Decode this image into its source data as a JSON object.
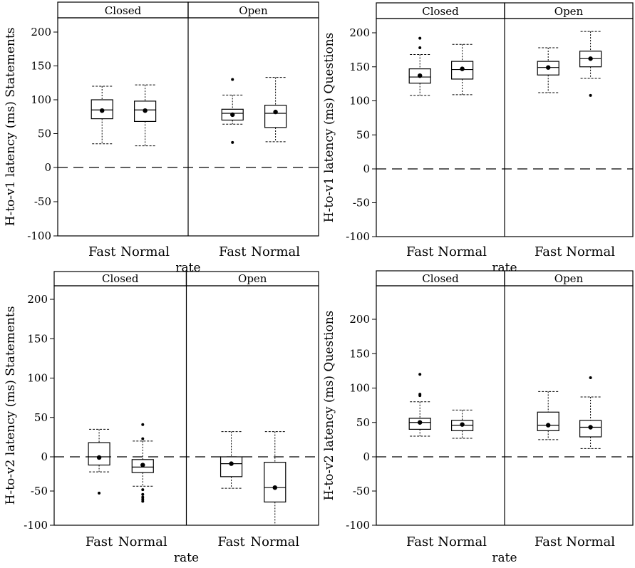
{
  "chart_data": [
    {
      "type": "boxplot",
      "ylabel": "H-to-v1 latency (ms) Statements",
      "xlabel": "rate",
      "ylim": [
        -100,
        220
      ],
      "yticks": [
        200,
        150,
        100,
        50,
        0,
        -50,
        -100
      ],
      "reference_line": 0,
      "panels": [
        {
          "label": "Closed",
          "categories": [
            "Fast",
            "Normal"
          ],
          "boxes": [
            {
              "min": 35,
              "q1": 72,
              "median": 85,
              "q3": 100,
              "max": 120,
              "mean": 84,
              "outliers": []
            },
            {
              "min": 32,
              "q1": 68,
              "median": 85,
              "q3": 98,
              "max": 122,
              "mean": 84,
              "outliers": []
            }
          ]
        },
        {
          "label": "Open",
          "categories": [
            "Fast",
            "Normal"
          ],
          "boxes": [
            {
              "min": 64,
              "q1": 70,
              "median": 80,
              "q3": 86,
              "max": 107,
              "mean": 78,
              "outliers": [
                130,
                37
              ]
            },
            {
              "min": 38,
              "q1": 59,
              "median": 80,
              "q3": 92,
              "max": 133,
              "mean": 82,
              "outliers": []
            }
          ]
        }
      ]
    },
    {
      "type": "boxplot",
      "ylabel": "H-to-v1 latency (ms) Questions",
      "xlabel": "rate",
      "ylim": [
        -100,
        220
      ],
      "yticks": [
        200,
        150,
        100,
        50,
        0,
        -50,
        -100
      ],
      "reference_line": 0,
      "panels": [
        {
          "label": "Closed",
          "categories": [
            "Fast",
            "Normal"
          ],
          "boxes": [
            {
              "min": 108,
              "q1": 126,
              "median": 135,
              "q3": 147,
              "max": 168,
              "mean": 137,
              "outliers": [
                192,
                178
              ]
            },
            {
              "min": 109,
              "q1": 132,
              "median": 146,
              "q3": 158,
              "max": 183,
              "mean": 147,
              "outliers": []
            }
          ]
        },
        {
          "label": "Open",
          "categories": [
            "Fast",
            "Normal"
          ],
          "boxes": [
            {
              "min": 112,
              "q1": 138,
              "median": 149,
              "q3": 158,
              "max": 178,
              "mean": 149,
              "outliers": []
            },
            {
              "min": 133,
              "q1": 150,
              "median": 162,
              "q3": 173,
              "max": 202,
              "mean": 162,
              "outliers": [
                108
              ]
            }
          ]
        }
      ]
    },
    {
      "type": "boxplot",
      "ylabel": "H-to-v2 latency (ms) Statements",
      "xlabel": "rate",
      "ylim": [
        -100,
        220
      ],
      "yticks": [
        200,
        150,
        100,
        50,
        0,
        -50,
        -100
      ],
      "reference_line": 0,
      "panels": [
        {
          "label": "Closed",
          "categories": [
            "Fast",
            "Normal"
          ],
          "boxes": [
            {
              "min": -22,
              "q1": -12,
              "median": 0,
              "q3": 18,
              "max": 35,
              "mean": -1,
              "outliers": [
                -53
              ]
            },
            {
              "min": -43,
              "q1": -23,
              "median": -15,
              "q3": -4,
              "max": 20,
              "mean": -12,
              "outliers": [
                41,
                23,
                -48,
                -55,
                -59,
                -62,
                -65
              ]
            }
          ]
        },
        {
          "label": "Open",
          "categories": [
            "Fast",
            "Normal"
          ],
          "boxes": [
            {
              "min": -46,
              "q1": -29,
              "median": -10,
              "q3": 0,
              "max": 32,
              "mean": -10,
              "outliers": []
            },
            {
              "min": -100,
              "q1": -66,
              "median": -45,
              "q3": -8,
              "max": 32,
              "mean": -45,
              "outliers": []
            }
          ]
        }
      ]
    },
    {
      "type": "boxplot",
      "ylabel": "H-to-v2 latency (ms) Questions",
      "xlabel": "rate",
      "ylim": [
        -100,
        220
      ],
      "yticks": [
        200,
        150,
        100,
        50,
        0,
        -50,
        -100
      ],
      "reference_line": 0,
      "panels": [
        {
          "label": "Closed",
          "categories": [
            "Fast",
            "Normal"
          ],
          "boxes": [
            {
              "min": 30,
              "q1": 40,
              "median": 50,
              "q3": 56,
              "max": 80,
              "mean": 50,
              "outliers": [
                120,
                91,
                89
              ]
            },
            {
              "min": 27,
              "q1": 38,
              "median": 46,
              "q3": 53,
              "max": 68,
              "mean": 47,
              "outliers": []
            }
          ]
        },
        {
          "label": "Open",
          "categories": [
            "Fast",
            "Normal"
          ],
          "boxes": [
            {
              "min": 25,
              "q1": 38,
              "median": 46,
              "q3": 65,
              "max": 95,
              "mean": 46,
              "outliers": []
            },
            {
              "min": 12,
              "q1": 29,
              "median": 43,
              "q3": 53,
              "max": 87,
              "mean": 43,
              "outliers": [
                115
              ]
            }
          ]
        }
      ]
    }
  ]
}
